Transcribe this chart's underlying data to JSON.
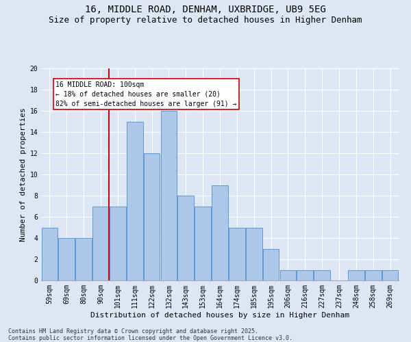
{
  "title1": "16, MIDDLE ROAD, DENHAM, UXBRIDGE, UB9 5EG",
  "title2": "Size of property relative to detached houses in Higher Denham",
  "xlabel": "Distribution of detached houses by size in Higher Denham",
  "ylabel": "Number of detached properties",
  "categories": [
    "59sqm",
    "69sqm",
    "80sqm",
    "90sqm",
    "101sqm",
    "111sqm",
    "122sqm",
    "132sqm",
    "143sqm",
    "153sqm",
    "164sqm",
    "174sqm",
    "185sqm",
    "195sqm",
    "206sqm",
    "216sqm",
    "227sqm",
    "237sqm",
    "248sqm",
    "258sqm",
    "269sqm"
  ],
  "values": [
    5,
    4,
    4,
    7,
    7,
    15,
    12,
    16,
    8,
    7,
    9,
    5,
    5,
    3,
    1,
    1,
    1,
    0,
    1,
    1,
    1
  ],
  "bar_color": "#aec6e8",
  "bar_edge_color": "#5b9bd5",
  "background_color": "#dce6f5",
  "grid_color": "#ffffff",
  "annotation_line1": "16 MIDDLE ROAD: 100sqm",
  "annotation_line2": "← 18% of detached houses are smaller (20)",
  "annotation_line3": "82% of semi-detached houses are larger (91) →",
  "annotation_box_color": "#ffffff",
  "annotation_box_edge": "#cc0000",
  "vline_color": "#cc0000",
  "vline_x_index": 3.5,
  "ylim": [
    0,
    20
  ],
  "yticks": [
    0,
    2,
    4,
    6,
    8,
    10,
    12,
    14,
    16,
    18,
    20
  ],
  "footer": "Contains HM Land Registry data © Crown copyright and database right 2025.\nContains public sector information licensed under the Open Government Licence v3.0.",
  "title1_fontsize": 10,
  "title2_fontsize": 9,
  "xlabel_fontsize": 8,
  "ylabel_fontsize": 8,
  "tick_fontsize": 7,
  "footer_fontsize": 6,
  "annot_fontsize": 7
}
